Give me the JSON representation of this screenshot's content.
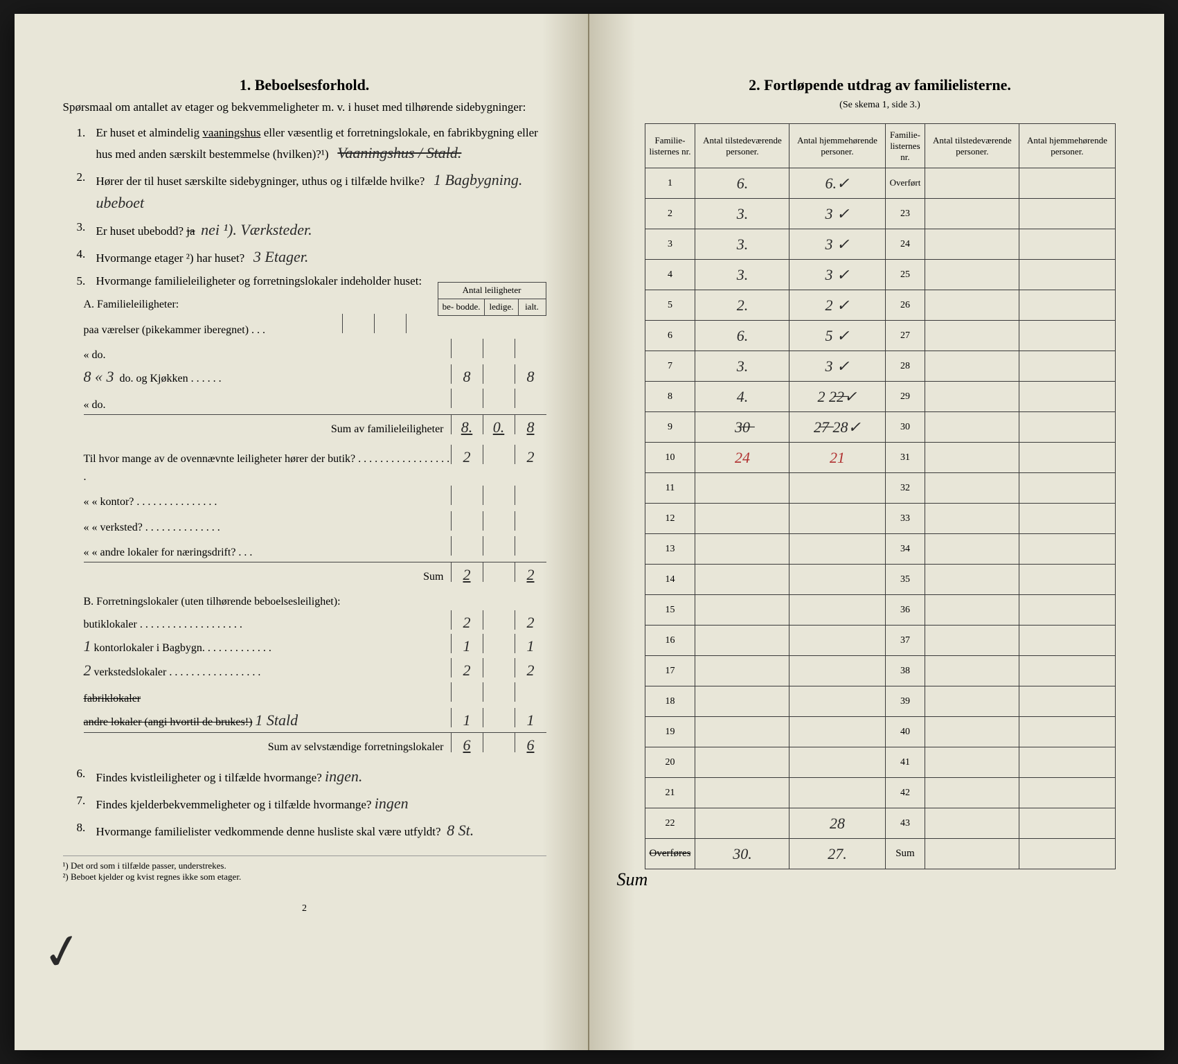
{
  "left": {
    "title": "1.   Beboelsesforhold.",
    "intro": "Spørsmaal om antallet av etager og bekvemmeligheter m. v. i huset med tilhørende sidebygninger:",
    "q1_a": "Er huset et almindelig ",
    "q1_underline": "vaaningshus",
    "q1_b": " eller væsentlig et forretningslokale, en fabrikbygning eller hus med anden særskilt bestemmelse (hvilken)?¹)",
    "q1_hand": "Vaaningshus / Stald.",
    "q2": "Hører der til huset særskilte sidebygninger, uthus og i tilfælde hvilke?",
    "q2_hand": "1 Bagbygning. ubeboet",
    "q3": "Er huset ubebodd?   ",
    "q3_strike": "ja",
    "q3_hand": "nei ¹).  Værksteder.",
    "q4": "Hvormange etager ²) har huset?",
    "q4_hand": "3 Etager.",
    "q5": "Hvormange familieleiligheter og forretningslokaler indeholder huset:",
    "mini_header": "Antal leiligheter",
    "mini_cols": [
      "be-\nbodde.",
      "ledige.",
      "ialt."
    ],
    "sectionA_title": "A. Familieleiligheter:",
    "rowA1": "paa        værelser (pikekammer iberegnet) . . .",
    "rowA2_pre": "«        do.",
    "rowA3_hand_left": "8 « 3",
    "rowA3": "do.  og Kjøkken . . . . . .",
    "rowA3_cells": [
      "8",
      "",
      "8"
    ],
    "rowA4": "«        do.",
    "sumA": "Sum av familieleiligheter",
    "sumA_cells": [
      "8.",
      "0.",
      "8"
    ],
    "butik_intro": "Til hvor mange av de ovennævnte leiligheter hører der butik? . . . . . . . . . . . . . . . . . .",
    "butik_cells": [
      "2",
      "",
      "2"
    ],
    "kontor": "«     «   kontor? . . . . . . . . . . . . . . .",
    "verksted": "«     «   verksted? . . . . . . . . . . . . . .",
    "andre": "«     «   andre lokaler for næringsdrift? . . .",
    "sum_sub": "Sum",
    "sum_sub_cells": [
      "2",
      "",
      "2"
    ],
    "sectionB_title": "B. Forretningslokaler (uten tilhørende beboelsesleilighet):",
    "butiklok": "butiklokaler . . . . . . . . . . . . . . . . . . .",
    "butiklok_cells": [
      "2",
      "",
      "2"
    ],
    "kontorlok_hand_pre": "1",
    "kontorlok": "kontorlokaler  i Bagbygn. . . . . . . . . . . . .",
    "kontorlok_cells": [
      "1",
      "",
      "1"
    ],
    "verkstedlok_hand_pre": "2",
    "verkstedlok": "verkstedslokaler . . . . . . . . . . . . . . . . .",
    "verkstedlok_cells": [
      "2",
      "",
      "2"
    ],
    "fabriklok": "fabriklokaler",
    "andrelok": "andre lokaler (angi hvortil de brukes!)",
    "andrelok_hand": "1 Stald",
    "andrelok_cells": [
      "1",
      "",
      "1"
    ],
    "sumB": "Sum av selvstændige forretningslokaler",
    "sumB_cells": [
      "6",
      "",
      "6"
    ],
    "q6": "Findes kvistleiligheter og i tilfælde hvormange?",
    "q6_hand": "ingen.",
    "q7": "Findes kjelderbekvemmeligheter og i tilfælde hvormange?",
    "q7_hand": "ingen",
    "q8": "Hvormange familielister vedkommende denne husliste skal være utfyldt?",
    "q8_hand": "8 St.",
    "foot1": "¹) Det ord som i tilfælde passer, understrekes.",
    "foot2": "²) Beboet kjelder og kvist regnes ikke som etager.",
    "page_num": "2"
  },
  "right": {
    "title": "2.   Fortløpende utdrag av familielisterne.",
    "subtitle": "(Se skema 1, side 3.)",
    "cols": [
      "Familie-\nlisternes\nnr.",
      "Antal\ntilstedeværende\npersoner.",
      "Antal\nhjemmehørende\npersoner.",
      "Familie-\nlisternes\nnr.",
      "Antal\ntilstedeværende\npersoner.",
      "Antal\nhjemmehørende\npersoner."
    ],
    "overfort": "Overført",
    "rows_left": [
      {
        "nr": "1",
        "a": "6.",
        "b": "6.✓"
      },
      {
        "nr": "2",
        "a": "3.",
        "b": "3 ✓"
      },
      {
        "nr": "3",
        "a": "3.",
        "b": "3 ✓"
      },
      {
        "nr": "4",
        "a": "3.",
        "b": "3 ✓"
      },
      {
        "nr": "5",
        "a": "2.",
        "b": "2 ✓"
      },
      {
        "nr": "6",
        "a": "6.",
        "b": "5 ✓"
      },
      {
        "nr": "7",
        "a": "3.",
        "b": "3 ✓"
      },
      {
        "nr": "8",
        "a": "4.",
        "b": "2  2̶2̶✓"
      },
      {
        "nr": "9",
        "a": "3̶0̶",
        "b": "2̶7̶ 28✓"
      },
      {
        "nr": "10",
        "a": "24",
        "b": "21",
        "red": true
      },
      {
        "nr": "11",
        "a": "",
        "b": ""
      },
      {
        "nr": "12",
        "a": "",
        "b": ""
      },
      {
        "nr": "13",
        "a": "",
        "b": ""
      },
      {
        "nr": "14",
        "a": "",
        "b": ""
      },
      {
        "nr": "15",
        "a": "",
        "b": ""
      },
      {
        "nr": "16",
        "a": "",
        "b": ""
      },
      {
        "nr": "17",
        "a": "",
        "b": ""
      },
      {
        "nr": "18",
        "a": "",
        "b": ""
      },
      {
        "nr": "19",
        "a": "",
        "b": ""
      },
      {
        "nr": "20",
        "a": "",
        "b": ""
      },
      {
        "nr": "21",
        "a": "",
        "b": ""
      },
      {
        "nr": "22",
        "a": "",
        "b": "28"
      }
    ],
    "rows_right_nrs": [
      "",
      "23",
      "24",
      "25",
      "26",
      "27",
      "28",
      "29",
      "30",
      "31",
      "32",
      "33",
      "34",
      "35",
      "36",
      "37",
      "38",
      "39",
      "40",
      "41",
      "42",
      "43"
    ],
    "overfores": "Overføres",
    "overfores_a": "30.",
    "overfores_b": "27.",
    "sum_label": "Sum",
    "sum_hand": "Sum"
  },
  "colors": {
    "paper": "#e8e6d8",
    "ink": "#2a2a2a",
    "red_ink": "#b03030",
    "rule": "#3a3a3a"
  }
}
